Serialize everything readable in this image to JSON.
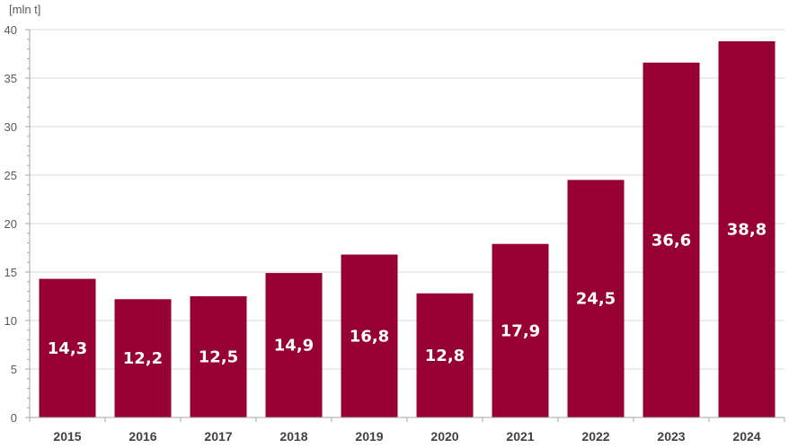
{
  "chart_data": {
    "type": "bar",
    "title": "",
    "ylabel": "[mln t]",
    "xlabel": "",
    "categories": [
      "2015",
      "2016",
      "2017",
      "2018",
      "2019",
      "2020",
      "2021",
      "2022",
      "2023",
      "2024"
    ],
    "values": [
      14.3,
      12.2,
      12.5,
      14.9,
      16.8,
      12.8,
      17.9,
      24.5,
      36.6,
      38.8
    ],
    "value_labels": [
      "14,3",
      "12,2",
      "12,5",
      "14,9",
      "16,8",
      "12,8",
      "17,9",
      "24,5",
      "36,6",
      "38,8"
    ],
    "ylim": [
      0,
      40
    ],
    "yticks": [
      "0",
      "5",
      "10",
      "15",
      "20",
      "25",
      "30",
      "35",
      "40"
    ],
    "grid": true,
    "legend": "none",
    "bar_color": "#960032"
  }
}
